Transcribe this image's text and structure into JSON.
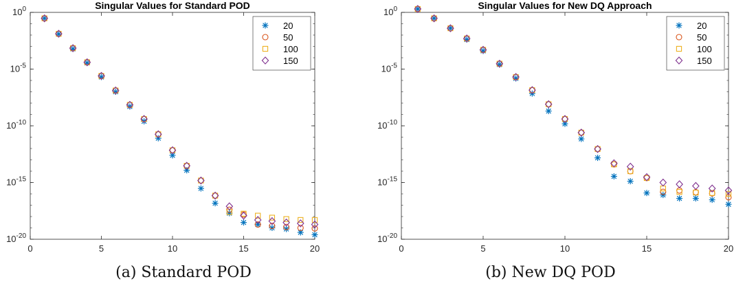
{
  "colors": {
    "20": "#0072BD",
    "50": "#D95319",
    "100": "#EDB120",
    "150": "#7E2F8E"
  },
  "chart_data": [
    {
      "type": "scatter",
      "title": "Singular Values for Standard POD",
      "caption": "(a) Standard POD",
      "xlabel": "",
      "ylabel": "",
      "xlim": [
        0,
        20
      ],
      "xticks": [
        "0",
        "5",
        "10",
        "15",
        "20"
      ],
      "ylim": [
        1e-20,
        1
      ],
      "yscale": "log",
      "yticks": [
        {
          "base": "10",
          "exp": "0",
          "value": 1
        },
        {
          "base": "10",
          "exp": "-5",
          "value": 1e-05
        },
        {
          "base": "10",
          "exp": "-10",
          "value": 1e-10
        },
        {
          "base": "10",
          "exp": "-15",
          "value": 1e-15
        },
        {
          "base": "10",
          "exp": "-20",
          "value": 1e-20
        }
      ],
      "legend_position": "top-right",
      "grid": false,
      "x": [
        1,
        2,
        3,
        4,
        5,
        6,
        7,
        8,
        9,
        10,
        11,
        12,
        13,
        14,
        15,
        16,
        17,
        18,
        19,
        20
      ],
      "series": [
        {
          "name": "20",
          "marker": "asterisk",
          "values": [
            0.3,
            0.012,
            0.0006,
            3.5e-05,
            2e-06,
            1e-07,
            5e-09,
            2.5e-10,
            8e-12,
            2.5e-13,
            1.2e-14,
            3e-16,
            1.5e-17,
            2e-18,
            3e-19,
            2e-19,
            1e-19,
            8e-20,
            4e-20,
            2.5e-20
          ]
        },
        {
          "name": "50",
          "marker": "circle",
          "values": [
            0.3,
            0.013,
            0.0007,
            4e-05,
            2.5e-06,
            1.3e-07,
            7e-09,
            4e-10,
            1.8e-11,
            7e-13,
            3e-14,
            1.5e-15,
            7e-17,
            4e-18,
            1.5e-18,
            2e-19,
            1.5e-19,
            1.2e-19,
            1e-19,
            9e-20
          ]
        },
        {
          "name": "100",
          "marker": "square",
          "values": [
            0.3,
            0.013,
            0.0007,
            4e-05,
            2.5e-06,
            1.3e-07,
            7e-09,
            4e-10,
            1.8e-11,
            7e-13,
            3e-14,
            1.5e-15,
            7e-17,
            2.5e-18,
            1.8e-18,
            1.2e-18,
            8e-19,
            6e-19,
            5e-19,
            5e-19
          ]
        },
        {
          "name": "150",
          "marker": "diamond",
          "values": [
            0.3,
            0.013,
            0.0007,
            4e-05,
            2.5e-06,
            1.3e-07,
            7e-09,
            4e-10,
            1.8e-11,
            7e-13,
            3e-14,
            1.5e-15,
            7e-17,
            8e-18,
            1.2e-18,
            5e-19,
            4e-19,
            3e-19,
            2.5e-19,
            2e-19
          ]
        }
      ]
    },
    {
      "type": "scatter",
      "title": "Singular Values for New DQ Approach",
      "caption": "(b) New DQ POD",
      "xlabel": "",
      "ylabel": "",
      "xlim": [
        0,
        20
      ],
      "xticks": [
        "0",
        "5",
        "10",
        "15",
        "20"
      ],
      "ylim": [
        1e-20,
        1
      ],
      "yscale": "log",
      "yticks": [
        {
          "base": "10",
          "exp": "0",
          "value": 1
        },
        {
          "base": "10",
          "exp": "-5",
          "value": 1e-05
        },
        {
          "base": "10",
          "exp": "-10",
          "value": 1e-10
        },
        {
          "base": "10",
          "exp": "-15",
          "value": 1e-15
        },
        {
          "base": "10",
          "exp": "-20",
          "value": 1e-20
        }
      ],
      "legend_position": "top-right",
      "grid": false,
      "x": [
        1,
        2,
        3,
        4,
        5,
        6,
        7,
        8,
        9,
        10,
        11,
        12,
        13,
        14,
        15,
        16,
        17,
        18,
        19,
        20
      ],
      "series": [
        {
          "name": "20",
          "marker": "asterisk",
          "values": [
            2,
            0.3,
            0.04,
            0.004,
            0.0004,
            2.5e-05,
            1.5e-06,
            7e-08,
            2e-09,
            1.5e-10,
            7e-12,
            1.5e-13,
            3.5e-15,
            1.3e-15,
            1.2e-16,
            8e-17,
            4e-17,
            4e-17,
            3e-17,
            1.2e-17
          ]
        },
        {
          "name": "50",
          "marker": "circle",
          "values": [
            2,
            0.3,
            0.04,
            0.005,
            0.0005,
            3e-05,
            2e-06,
            1.4e-07,
            8e-09,
            4e-10,
            2.5e-11,
            9e-13,
            4e-14,
            1e-14,
            2.5e-15,
            1.5e-16,
            2e-16,
            1.4e-16,
            1.1e-16,
            5e-17
          ]
        },
        {
          "name": "100",
          "marker": "square",
          "values": [
            2,
            0.3,
            0.04,
            0.005,
            0.0005,
            3e-05,
            2e-06,
            1.4e-07,
            8e-09,
            4e-10,
            2.5e-11,
            9e-13,
            4e-14,
            1e-14,
            2.5e-15,
            3e-16,
            1.5e-16,
            1.3e-16,
            1.2e-16,
            1e-16
          ]
        },
        {
          "name": "150",
          "marker": "diamond",
          "values": [
            2,
            0.3,
            0.04,
            0.005,
            0.0005,
            3e-05,
            2e-06,
            1.4e-07,
            8e-09,
            4e-10,
            2.5e-11,
            9e-13,
            5e-14,
            2.5e-14,
            3e-15,
            1e-15,
            7e-16,
            5e-16,
            3e-16,
            2e-16
          ]
        }
      ]
    }
  ]
}
